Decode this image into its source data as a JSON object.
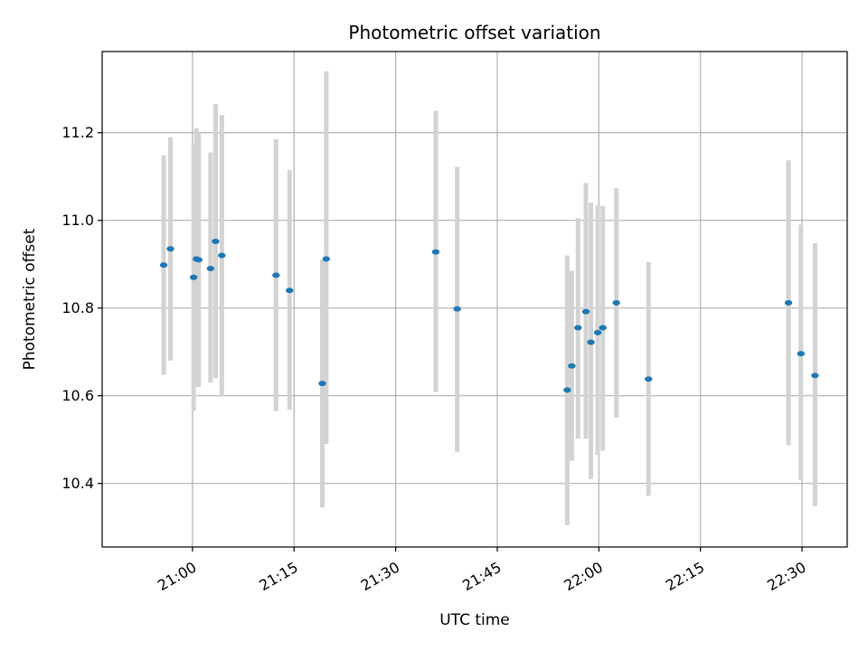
{
  "chart_data": {
    "type": "scatter",
    "title": "Photometric offset variation",
    "xlabel": "UTC time",
    "ylabel": "Photometric offset",
    "x_ticks": [
      "21:00",
      "21:15",
      "21:30",
      "21:45",
      "22:00",
      "22:15",
      "22:30"
    ],
    "y_ticks": [
      "10.4",
      "10.6",
      "10.8",
      "11.0",
      "11.2"
    ],
    "xlim": [
      "20:46:40",
      "22:36:40"
    ],
    "ylim": [
      10.255,
      11.385
    ],
    "grid": true,
    "colors": {
      "point": "#1f77b4",
      "errorbar": "#d3d3d3",
      "grid": "#b0b0b0"
    },
    "points": [
      {
        "time": "20:55:45",
        "y": 10.898,
        "y_low": 10.648,
        "y_high": 11.148
      },
      {
        "time": "20:56:45",
        "y": 10.935,
        "y_low": 10.68,
        "y_high": 11.19
      },
      {
        "time": "21:00:10",
        "y": 10.87,
        "y_low": 10.565,
        "y_high": 11.175
      },
      {
        "time": "21:00:35",
        "y": 10.912,
        "y_low": 10.62,
        "y_high": 11.21
      },
      {
        "time": "21:00:55",
        "y": 10.91,
        "y_low": 10.62,
        "y_high": 11.2
      },
      {
        "time": "21:02:40",
        "y": 10.89,
        "y_low": 10.63,
        "y_high": 11.155
      },
      {
        "time": "21:03:25",
        "y": 10.952,
        "y_low": 10.64,
        "y_high": 11.265
      },
      {
        "time": "21:04:20",
        "y": 10.92,
        "y_low": 10.6,
        "y_high": 11.24
      },
      {
        "time": "21:12:20",
        "y": 10.875,
        "y_low": 10.565,
        "y_high": 11.185
      },
      {
        "time": "21:14:20",
        "y": 10.84,
        "y_low": 10.568,
        "y_high": 11.115
      },
      {
        "time": "21:19:10",
        "y": 10.628,
        "y_low": 10.345,
        "y_high": 10.91
      },
      {
        "time": "21:19:45",
        "y": 10.912,
        "y_low": 10.49,
        "y_high": 11.34
      },
      {
        "time": "21:35:55",
        "y": 10.928,
        "y_low": 10.608,
        "y_high": 11.25
      },
      {
        "time": "21:39:05",
        "y": 10.798,
        "y_low": 10.472,
        "y_high": 11.122
      },
      {
        "time": "21:55:20",
        "y": 10.613,
        "y_low": 10.305,
        "y_high": 10.92
      },
      {
        "time": "21:56:00",
        "y": 10.668,
        "y_low": 10.452,
        "y_high": 10.885
      },
      {
        "time": "21:56:55",
        "y": 10.755,
        "y_low": 10.502,
        "y_high": 11.005
      },
      {
        "time": "21:58:05",
        "y": 10.792,
        "y_low": 10.502,
        "y_high": 11.085
      },
      {
        "time": "21:58:50",
        "y": 10.722,
        "y_low": 10.41,
        "y_high": 11.04
      },
      {
        "time": "21:59:50",
        "y": 10.744,
        "y_low": 10.465,
        "y_high": 11.035
      },
      {
        "time": "22:00:35",
        "y": 10.755,
        "y_low": 10.475,
        "y_high": 11.033
      },
      {
        "time": "22:02:35",
        "y": 10.812,
        "y_low": 10.55,
        "y_high": 11.073
      },
      {
        "time": "22:07:20",
        "y": 10.638,
        "y_low": 10.372,
        "y_high": 10.905
      },
      {
        "time": "22:28:00",
        "y": 10.812,
        "y_low": 10.487,
        "y_high": 11.137
      },
      {
        "time": "22:29:50",
        "y": 10.696,
        "y_low": 10.407,
        "y_high": 10.99
      },
      {
        "time": "22:31:55",
        "y": 10.646,
        "y_low": 10.348,
        "y_high": 10.948
      }
    ]
  }
}
